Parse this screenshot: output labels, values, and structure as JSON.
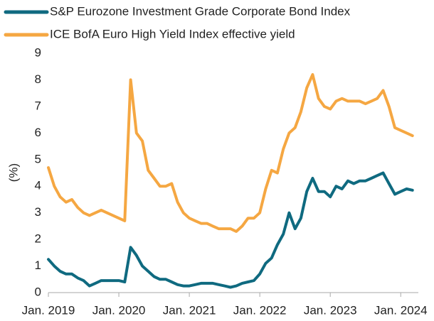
{
  "chart_data": {
    "type": "line",
    "ylabel": "(%)",
    "x": [
      "2019-01",
      "2019-02",
      "2019-03",
      "2019-04",
      "2019-05",
      "2019-06",
      "2019-07",
      "2019-08",
      "2019-09",
      "2019-10",
      "2019-11",
      "2019-12",
      "2020-01",
      "2020-02",
      "2020-03",
      "2020-04",
      "2020-05",
      "2020-06",
      "2020-07",
      "2020-08",
      "2020-09",
      "2020-10",
      "2020-11",
      "2020-12",
      "2021-01",
      "2021-02",
      "2021-03",
      "2021-04",
      "2021-05",
      "2021-06",
      "2021-07",
      "2021-08",
      "2021-09",
      "2021-10",
      "2021-11",
      "2021-12",
      "2022-01",
      "2022-02",
      "2022-03",
      "2022-04",
      "2022-05",
      "2022-06",
      "2022-07",
      "2022-08",
      "2022-09",
      "2022-10",
      "2022-11",
      "2022-12",
      "2023-01",
      "2023-02",
      "2023-03",
      "2023-04",
      "2023-05",
      "2023-06",
      "2023-07",
      "2023-08",
      "2023-09",
      "2023-10",
      "2023-11",
      "2023-12",
      "2024-01",
      "2024-02",
      "2024-03"
    ],
    "series": [
      {
        "name": "S&P Eurozone Investment Grade Corporate Bond Index",
        "color": "#0f6a80",
        "values": [
          1.25,
          1.0,
          0.8,
          0.7,
          0.7,
          0.55,
          0.45,
          0.25,
          0.35,
          0.45,
          0.45,
          0.45,
          0.45,
          0.4,
          1.7,
          1.4,
          1.0,
          0.8,
          0.6,
          0.5,
          0.5,
          0.4,
          0.3,
          0.25,
          0.25,
          0.3,
          0.35,
          0.35,
          0.35,
          0.3,
          0.25,
          0.2,
          0.25,
          0.35,
          0.4,
          0.45,
          0.7,
          1.1,
          1.3,
          1.8,
          2.2,
          3.0,
          2.4,
          2.8,
          3.8,
          4.3,
          3.8,
          3.8,
          3.6,
          4.0,
          3.9,
          4.2,
          4.1,
          4.2,
          4.2,
          4.3,
          4.4,
          4.5,
          4.1,
          3.7,
          3.8,
          3.9,
          3.85
        ]
      },
      {
        "name": "ICE BofA Euro High Yield Index effective yield",
        "color": "#f5a742",
        "values": [
          4.7,
          4.0,
          3.6,
          3.4,
          3.5,
          3.2,
          3.0,
          2.9,
          3.0,
          3.1,
          3.0,
          2.9,
          2.8,
          2.7,
          8.0,
          6.0,
          5.7,
          4.6,
          4.3,
          4.0,
          4.0,
          4.1,
          3.4,
          3.0,
          2.8,
          2.7,
          2.6,
          2.6,
          2.5,
          2.4,
          2.4,
          2.4,
          2.3,
          2.5,
          2.8,
          2.8,
          3.0,
          3.9,
          4.6,
          4.5,
          5.4,
          6.0,
          6.2,
          6.8,
          7.7,
          8.2,
          7.3,
          7.0,
          6.9,
          7.2,
          7.3,
          7.2,
          7.2,
          7.2,
          7.1,
          7.2,
          7.3,
          7.6,
          7.0,
          6.2,
          6.1,
          6.0,
          5.9
        ]
      }
    ],
    "xlim": [
      "2019-01",
      "2024-04"
    ],
    "xticks": [
      {
        "value": "2019-01",
        "label": "Jan. 2019"
      },
      {
        "value": "2020-01",
        "label": "Jan. 2020"
      },
      {
        "value": "2021-01",
        "label": "Jan. 2021"
      },
      {
        "value": "2022-01",
        "label": "Jan. 2022"
      },
      {
        "value": "2023-01",
        "label": "Jan. 2023"
      },
      {
        "value": "2024-01",
        "label": "Jan. 2024"
      }
    ],
    "ylim": [
      0,
      9
    ],
    "yticks": [
      0,
      1,
      2,
      3,
      4,
      5,
      6,
      7,
      8,
      9
    ],
    "grid": false
  }
}
